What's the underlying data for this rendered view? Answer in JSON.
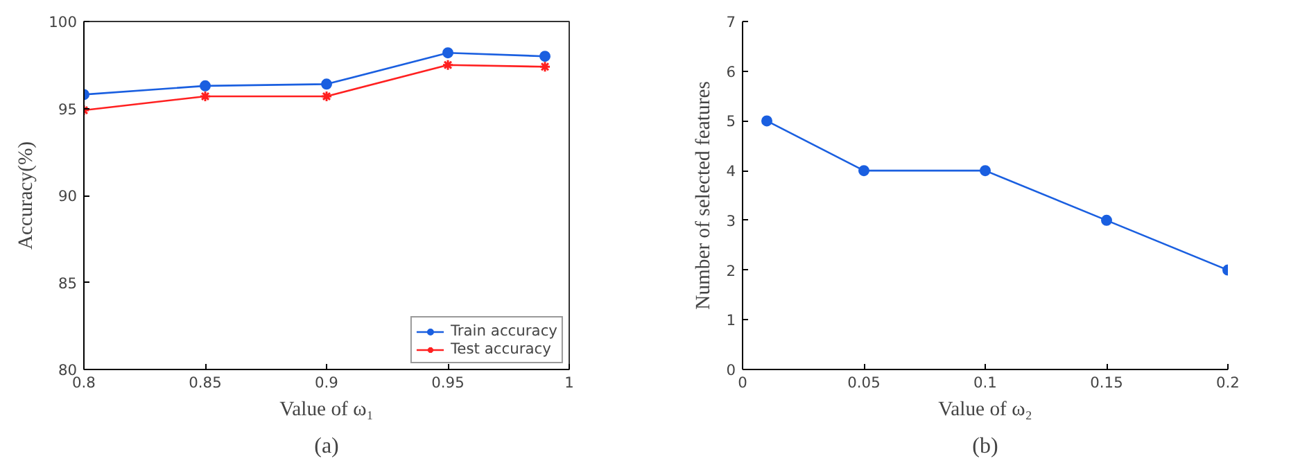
{
  "chart_data": [
    {
      "type": "line",
      "xlabel": "Value of ω₁",
      "ylabel": "Accuracy(%)",
      "x": [
        0.8,
        0.85,
        0.9,
        0.95,
        0.99
      ],
      "series": [
        {
          "name": "Train accuracy",
          "color": "#1a5fe0",
          "marker": "circle",
          "values": [
            95.8,
            96.3,
            96.4,
            98.2,
            98.0
          ]
        },
        {
          "name": "Test accuracy",
          "color": "#ff2020",
          "marker": "cross",
          "values": [
            94.9,
            95.7,
            95.7,
            97.5,
            97.4
          ]
        }
      ],
      "xlim": [
        0.8,
        1
      ],
      "xticks": [
        0.8,
        0.85,
        0.9,
        0.95,
        1
      ],
      "ylim": [
        80,
        100
      ],
      "yticks": [
        80,
        85,
        90,
        95,
        100
      ],
      "grid": false,
      "legend": "bottom right",
      "annotations": [
        "(a)"
      ]
    },
    {
      "type": "line",
      "xlabel": "Value of ω₂",
      "ylabel": "Number of selected features",
      "x": [
        0.01,
        0.05,
        0.1,
        0.15,
        0.2
      ],
      "series": [
        {
          "color": "#1a5fe0",
          "marker": "circle",
          "values": [
            5,
            4,
            4,
            3,
            2
          ]
        }
      ],
      "xlim": [
        0,
        0.2
      ],
      "xticks": [
        0,
        0.05,
        0.1,
        0.15,
        0.2
      ],
      "ylim": [
        0,
        7
      ],
      "yticks": [
        0,
        1,
        2,
        3,
        4,
        5,
        6,
        7
      ],
      "grid": false,
      "legend": false,
      "annotations": [
        "(b)"
      ]
    }
  ]
}
